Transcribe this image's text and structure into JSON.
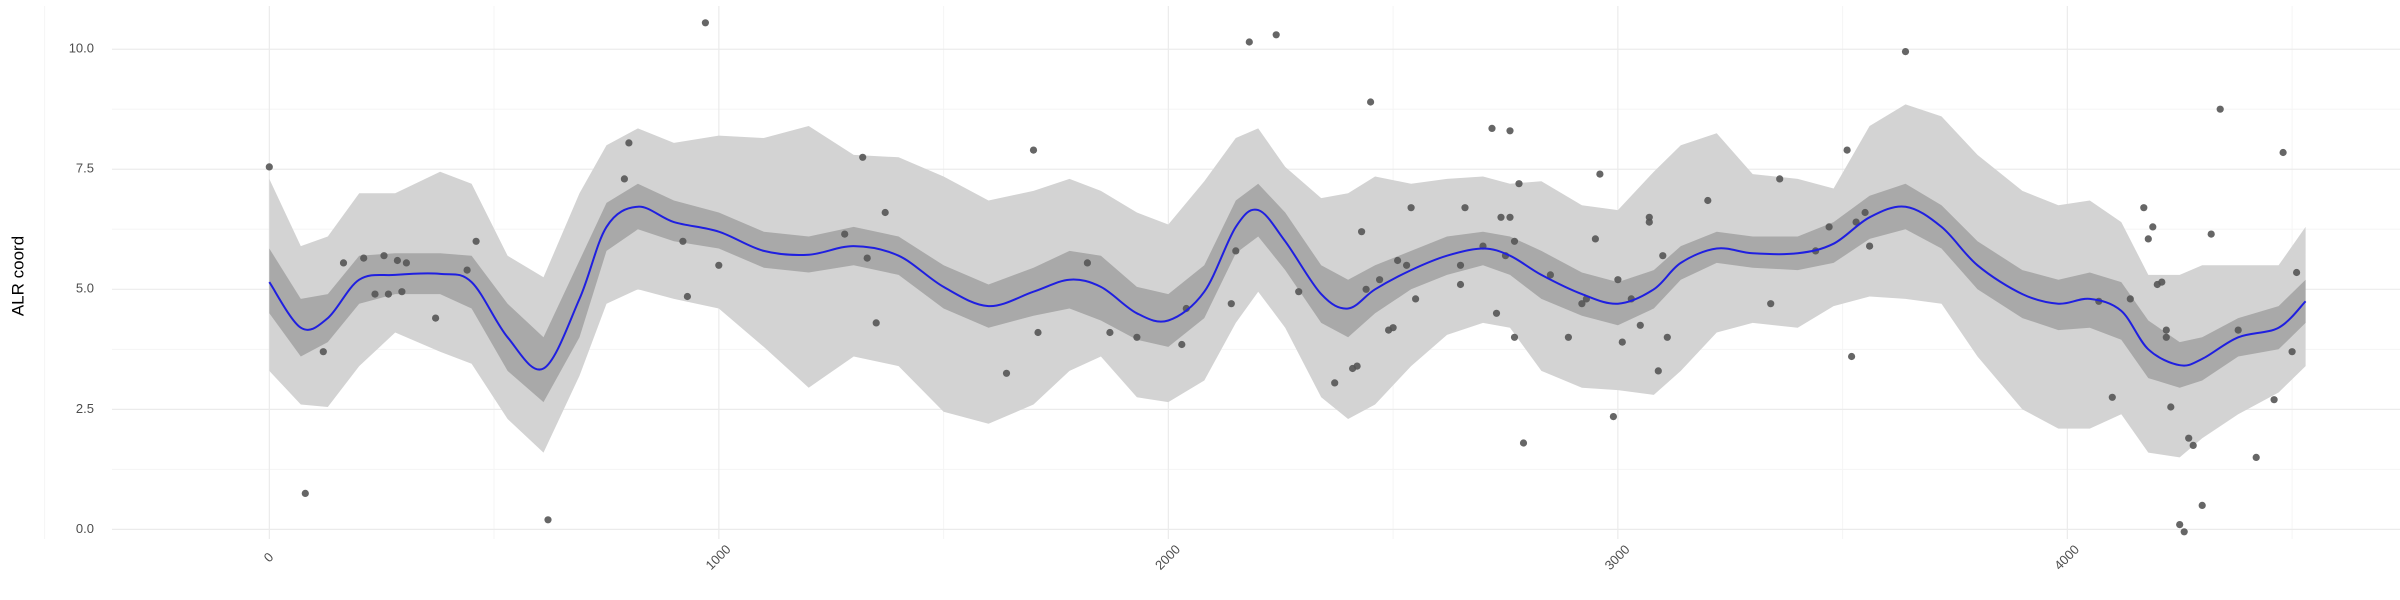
{
  "chart_data": {
    "type": "scatter",
    "title": "",
    "xlabel": "",
    "ylabel": "ALR coord",
    "xlim": [
      -350,
      4740
    ],
    "ylim": [
      -0.2,
      10.9
    ],
    "x_ticks": [
      0,
      1000,
      2000,
      3000,
      4000
    ],
    "x_tick_labels": [
      "0",
      "1000",
      "2000",
      "3000",
      "4000"
    ],
    "y_ticks": [
      0,
      2.5,
      5,
      7.5,
      10
    ],
    "y_tick_labels": [
      "0.0",
      "2.5",
      "5.0",
      "7.5",
      "10.0"
    ],
    "grid": true,
    "colors": {
      "points": "#555555",
      "fit_line": "#1f1fe0",
      "inner_band": "#a9a9a9",
      "outer_band": "#d3d3d3",
      "grid_major": "#ebebeb",
      "grid_minor": "#f5f5f5"
    },
    "fit": {
      "x": [
        0,
        70,
        130,
        200,
        280,
        380,
        450,
        530,
        610,
        690,
        750,
        820,
        900,
        1000,
        1100,
        1200,
        1300,
        1400,
        1500,
        1600,
        1700,
        1780,
        1850,
        1930,
        2000,
        2080,
        2150,
        2200,
        2260,
        2340,
        2400,
        2460,
        2540,
        2620,
        2700,
        2760,
        2830,
        2920,
        3000,
        3080,
        3140,
        3220,
        3300,
        3400,
        3480,
        3560,
        3640,
        3720,
        3800,
        3900,
        3980,
        4050,
        4120,
        4180,
        4250,
        4300,
        4380,
        4470,
        4530
      ],
      "y": [
        5.15,
        4.2,
        4.4,
        5.2,
        5.3,
        5.32,
        5.15,
        4.0,
        3.35,
        4.8,
        6.3,
        6.72,
        6.4,
        6.2,
        5.8,
        5.72,
        5.9,
        5.7,
        5.05,
        4.65,
        4.95,
        5.2,
        5.05,
        4.5,
        4.35,
        4.95,
        6.3,
        6.65,
        6.0,
        4.9,
        4.6,
        5.0,
        5.4,
        5.7,
        5.85,
        5.7,
        5.3,
        4.9,
        4.7,
        5.0,
        5.55,
        5.85,
        5.75,
        5.75,
        5.95,
        6.5,
        6.72,
        6.3,
        5.5,
        4.9,
        4.7,
        4.8,
        4.55,
        3.75,
        3.42,
        3.55,
        4.0,
        4.2,
        4.75
      ],
      "inner_lower": [
        4.5,
        3.6,
        3.9,
        4.7,
        4.9,
        4.9,
        4.6,
        3.3,
        2.65,
        4.0,
        5.8,
        6.25,
        6.0,
        5.85,
        5.45,
        5.35,
        5.5,
        5.3,
        4.6,
        4.2,
        4.45,
        4.6,
        4.35,
        3.95,
        3.8,
        4.4,
        5.75,
        6.1,
        5.4,
        4.3,
        4.0,
        4.5,
        5.0,
        5.3,
        5.5,
        5.3,
        4.8,
        4.45,
        4.25,
        4.6,
        5.2,
        5.55,
        5.45,
        5.4,
        5.55,
        6.05,
        6.25,
        5.85,
        5.0,
        4.4,
        4.15,
        4.2,
        3.95,
        3.15,
        2.95,
        3.1,
        3.6,
        3.75,
        4.3
      ],
      "inner_upper": [
        5.85,
        4.8,
        4.9,
        5.7,
        5.75,
        5.75,
        5.7,
        4.7,
        4.0,
        5.6,
        6.8,
        7.2,
        6.85,
        6.6,
        6.2,
        6.1,
        6.3,
        6.1,
        5.5,
        5.1,
        5.45,
        5.8,
        5.7,
        5.05,
        4.9,
        5.5,
        6.85,
        7.2,
        6.6,
        5.5,
        5.2,
        5.5,
        5.8,
        6.1,
        6.2,
        6.1,
        5.8,
        5.35,
        5.15,
        5.4,
        5.9,
        6.2,
        6.1,
        6.1,
        6.4,
        6.95,
        7.2,
        6.75,
        6.0,
        5.4,
        5.2,
        5.35,
        5.15,
        4.35,
        3.9,
        4.0,
        4.4,
        4.65,
        5.2
      ],
      "outer_lower": [
        3.3,
        2.6,
        2.55,
        3.4,
        4.1,
        3.7,
        3.45,
        2.3,
        1.6,
        3.2,
        4.7,
        5.0,
        4.8,
        4.6,
        3.8,
        2.95,
        3.6,
        3.4,
        2.45,
        2.2,
        2.6,
        3.3,
        3.6,
        2.75,
        2.65,
        3.1,
        4.3,
        4.95,
        4.2,
        2.75,
        2.3,
        2.6,
        3.4,
        4.05,
        4.3,
        4.2,
        3.3,
        2.95,
        2.9,
        2.8,
        3.3,
        4.1,
        4.3,
        4.2,
        4.65,
        4.85,
        4.8,
        4.7,
        3.6,
        2.5,
        2.1,
        2.1,
        2.4,
        1.6,
        1.5,
        1.9,
        2.4,
        2.85,
        3.4
      ],
      "outer_upper": [
        7.3,
        5.9,
        6.1,
        7.0,
        7.0,
        7.45,
        7.2,
        5.7,
        5.25,
        7.0,
        8.0,
        8.35,
        8.05,
        8.2,
        8.15,
        8.4,
        7.8,
        7.75,
        7.35,
        6.85,
        7.05,
        7.3,
        7.05,
        6.6,
        6.35,
        7.25,
        8.15,
        8.35,
        7.55,
        6.9,
        7.0,
        7.35,
        7.2,
        7.3,
        7.35,
        7.2,
        7.25,
        6.75,
        6.65,
        7.45,
        8.0,
        8.25,
        7.4,
        7.3,
        7.1,
        8.4,
        8.85,
        8.6,
        7.8,
        7.05,
        6.75,
        6.85,
        6.4,
        5.3,
        5.3,
        5.5,
        5.5,
        5.5,
        6.3
      ]
    },
    "points": [
      [
        0,
        7.55
      ],
      [
        80,
        0.75
      ],
      [
        120,
        3.7
      ],
      [
        165,
        5.55
      ],
      [
        210,
        5.65
      ],
      [
        235,
        4.9
      ],
      [
        255,
        5.7
      ],
      [
        265,
        4.9
      ],
      [
        285,
        5.6
      ],
      [
        295,
        4.95
      ],
      [
        305,
        5.55
      ],
      [
        370,
        4.4
      ],
      [
        440,
        5.4
      ],
      [
        460,
        6.0
      ],
      [
        620,
        0.2
      ],
      [
        790,
        7.3
      ],
      [
        800,
        8.05
      ],
      [
        920,
        6.0
      ],
      [
        930,
        4.85
      ],
      [
        970,
        10.55
      ],
      [
        1000,
        5.5
      ],
      [
        1280,
        6.15
      ],
      [
        1320,
        7.75
      ],
      [
        1330,
        5.65
      ],
      [
        1350,
        4.3
      ],
      [
        1370,
        6.6
      ],
      [
        1640,
        3.25
      ],
      [
        1700,
        7.9
      ],
      [
        1710,
        4.1
      ],
      [
        1820,
        5.55
      ],
      [
        1870,
        4.1
      ],
      [
        1930,
        4.0
      ],
      [
        2030,
        3.85
      ],
      [
        2040,
        4.6
      ],
      [
        2140,
        4.7
      ],
      [
        2150,
        5.8
      ],
      [
        2180,
        10.15
      ],
      [
        2240,
        10.3
      ],
      [
        2290,
        4.95
      ],
      [
        2370,
        3.05
      ],
      [
        2410,
        3.35
      ],
      [
        2420,
        3.4
      ],
      [
        2430,
        6.2
      ],
      [
        2440,
        5.0
      ],
      [
        2450,
        8.9
      ],
      [
        2470,
        5.2
      ],
      [
        2490,
        4.15
      ],
      [
        2500,
        4.2
      ],
      [
        2510,
        5.6
      ],
      [
        2530,
        5.5
      ],
      [
        2540,
        6.7
      ],
      [
        2550,
        4.8
      ],
      [
        2650,
        5.5
      ],
      [
        2650,
        5.1
      ],
      [
        2660,
        6.7
      ],
      [
        2700,
        5.9
      ],
      [
        2720,
        8.35
      ],
      [
        2730,
        4.5
      ],
      [
        2740,
        6.5
      ],
      [
        2750,
        5.7
      ],
      [
        2760,
        6.5
      ],
      [
        2760,
        8.3
      ],
      [
        2770,
        6.0
      ],
      [
        2770,
        4.0
      ],
      [
        2780,
        7.2
      ],
      [
        2790,
        1.8
      ],
      [
        2850,
        5.3
      ],
      [
        2890,
        4.0
      ],
      [
        2920,
        4.7
      ],
      [
        2930,
        4.8
      ],
      [
        2950,
        6.05
      ],
      [
        2960,
        7.4
      ],
      [
        2990,
        2.35
      ],
      [
        3000,
        5.2
      ],
      [
        3010,
        3.9
      ],
      [
        3030,
        4.8
      ],
      [
        3050,
        4.25
      ],
      [
        3070,
        6.5
      ],
      [
        3070,
        6.4
      ],
      [
        3090,
        3.3
      ],
      [
        3100,
        5.7
      ],
      [
        3110,
        4.0
      ],
      [
        3200,
        6.85
      ],
      [
        3340,
        4.7
      ],
      [
        3360,
        7.3
      ],
      [
        3440,
        5.8
      ],
      [
        3470,
        6.3
      ],
      [
        3510,
        7.9
      ],
      [
        3520,
        3.6
      ],
      [
        3530,
        6.4
      ],
      [
        3550,
        6.6
      ],
      [
        3560,
        5.9
      ],
      [
        3640,
        9.95
      ],
      [
        4070,
        4.75
      ],
      [
        4100,
        2.75
      ],
      [
        4140,
        4.8
      ],
      [
        4170,
        6.7
      ],
      [
        4180,
        6.05
      ],
      [
        4190,
        6.3
      ],
      [
        4200,
        5.1
      ],
      [
        4210,
        5.15
      ],
      [
        4220,
        4.15
      ],
      [
        4220,
        4.0
      ],
      [
        4230,
        2.55
      ],
      [
        4250,
        0.1
      ],
      [
        4260,
        -0.05
      ],
      [
        4270,
        1.9
      ],
      [
        4280,
        1.75
      ],
      [
        4300,
        0.5
      ],
      [
        4320,
        6.15
      ],
      [
        4340,
        8.75
      ],
      [
        4380,
        4.15
      ],
      [
        4420,
        1.5
      ],
      [
        4460,
        2.7
      ],
      [
        4480,
        7.85
      ],
      [
        4500,
        3.7
      ],
      [
        4510,
        5.35
      ]
    ]
  }
}
